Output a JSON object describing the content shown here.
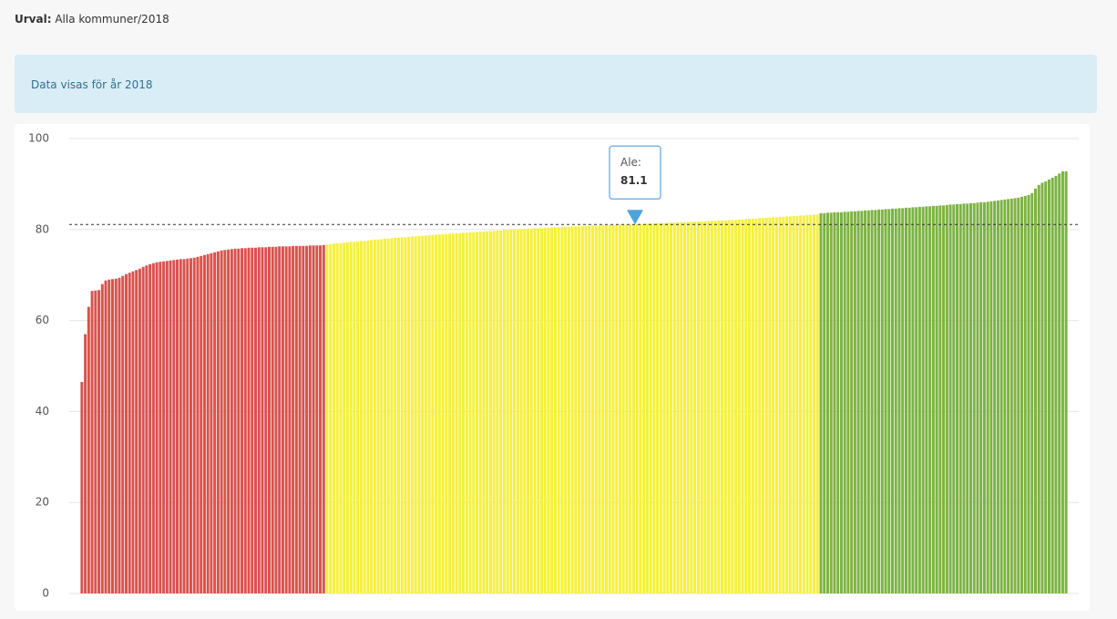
{
  "header": {
    "selection_label": "Urval:",
    "selection_value": "Alla kommuner/2018"
  },
  "info": {
    "text": "Data visas för år 2018"
  },
  "chart_data": {
    "type": "bar",
    "ylim": [
      0,
      100
    ],
    "yticks": [
      0,
      20,
      40,
      60,
      80,
      100
    ],
    "grid": true,
    "annotation": {
      "label": "Ale:",
      "value": 81.1
    },
    "series": [
      {
        "color": "#d9534f",
        "values": [
          46.5,
          57.0,
          63.0,
          66.5,
          66.6,
          66.7,
          68.0,
          68.8,
          69.0,
          69.1,
          69.2,
          69.4,
          69.8,
          70.2,
          70.5,
          70.8,
          71.1,
          71.4,
          71.8,
          72.1,
          72.4,
          72.6,
          72.8,
          72.9,
          73.0,
          73.1,
          73.2,
          73.3,
          73.4,
          73.5,
          73.5,
          73.6,
          73.7,
          73.8,
          74.0,
          74.2,
          74.4,
          74.6,
          74.8,
          75.0,
          75.2,
          75.4,
          75.5,
          75.6,
          75.7,
          75.8,
          75.8,
          75.9,
          75.9,
          76.0,
          76.0,
          76.0,
          76.1,
          76.1,
          76.1,
          76.2,
          76.2,
          76.2,
          76.3,
          76.3,
          76.3,
          76.3,
          76.4,
          76.4,
          76.4,
          76.4,
          76.4,
          76.5,
          76.5,
          76.5,
          76.5,
          76.6
        ]
      },
      {
        "color": "#f5f03c",
        "values": [
          76.7,
          76.8,
          76.9,
          77.0,
          77.0,
          77.1,
          77.2,
          77.3,
          77.3,
          77.4,
          77.5,
          77.5,
          77.6,
          77.7,
          77.8,
          77.8,
          77.9,
          78.0,
          78.0,
          78.1,
          78.2,
          78.2,
          78.3,
          78.3,
          78.4,
          78.5,
          78.5,
          78.6,
          78.6,
          78.7,
          78.8,
          78.8,
          78.9,
          78.9,
          79.0,
          79.0,
          79.1,
          79.1,
          79.2,
          79.2,
          79.3,
          79.3,
          79.4,
          79.4,
          79.5,
          79.5,
          79.6,
          79.6,
          79.7,
          79.7,
          79.8,
          79.8,
          79.9,
          79.9,
          80.0,
          80.0,
          80.0,
          80.1,
          80.1,
          80.2,
          80.2,
          80.3,
          80.3,
          80.3,
          80.4,
          80.4,
          80.5,
          80.5,
          80.5,
          80.6,
          80.6,
          80.6,
          80.7,
          80.7,
          80.7,
          80.8,
          80.8,
          80.8,
          80.9,
          80.9,
          80.9,
          81.0,
          81.0,
          81.0,
          81.0,
          81.0,
          81.1,
          81.1,
          81.1,
          81.1,
          81.1,
          81.2,
          81.2,
          81.2,
          81.3,
          81.3,
          81.3,
          81.4,
          81.4,
          81.4,
          81.5,
          81.5,
          81.5,
          81.6,
          81.6,
          81.6,
          81.7,
          81.7,
          81.7,
          81.8,
          81.8,
          81.8,
          81.9,
          81.9,
          81.9,
          82.0,
          82.0,
          82.0,
          82.1,
          82.1,
          82.1,
          82.2,
          82.2,
          82.3,
          82.3,
          82.4,
          82.4,
          82.5,
          82.5,
          82.6,
          82.6,
          82.7,
          82.7,
          82.8,
          82.8,
          82.9,
          82.9,
          83.0,
          83.0,
          83.1,
          83.1,
          83.2,
          83.2,
          83.3,
          83.3
        ]
      },
      {
        "color": "#7cb342",
        "values": [
          83.6,
          83.6,
          83.7,
          83.7,
          83.8,
          83.8,
          83.8,
          83.9,
          83.9,
          84.0,
          84.0,
          84.1,
          84.1,
          84.2,
          84.2,
          84.3,
          84.3,
          84.4,
          84.4,
          84.5,
          84.5,
          84.6,
          84.6,
          84.7,
          84.7,
          84.8,
          84.8,
          84.9,
          84.9,
          85.0,
          85.0,
          85.1,
          85.1,
          85.2,
          85.2,
          85.3,
          85.3,
          85.4,
          85.5,
          85.5,
          85.6,
          85.6,
          85.7,
          85.7,
          85.8,
          85.8,
          85.9,
          86.0,
          86.0,
          86.1,
          86.2,
          86.3,
          86.4,
          86.5,
          86.6,
          86.7,
          86.8,
          86.9,
          87.0,
          87.2,
          87.4,
          87.6,
          88.0,
          89.0,
          89.8,
          90.3,
          90.6,
          91.0,
          91.4,
          91.8,
          92.3,
          92.8,
          92.8
        ]
      }
    ]
  }
}
